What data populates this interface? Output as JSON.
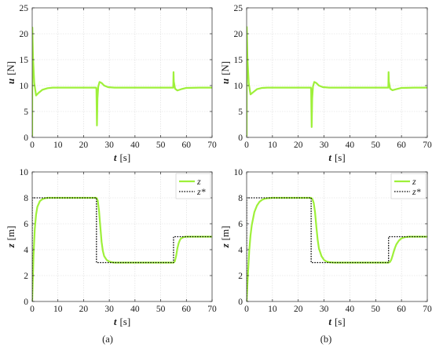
{
  "figure": {
    "captions": [
      "(a)",
      "(b)"
    ],
    "colors": {
      "series_main": "#9ef03a",
      "series_ref": "#000000",
      "grid": "#d9d9d9",
      "axes": "#262626"
    }
  },
  "chart_data": [
    {
      "id": "a-top",
      "type": "line",
      "xlabel_sym": "t",
      "xlabel_unit": "[s]",
      "ylabel_sym": "u",
      "ylabel_unit": "[N]",
      "xlim": [
        0,
        70
      ],
      "ylim": [
        0,
        25
      ],
      "xticks": [
        0,
        10,
        20,
        30,
        40,
        50,
        60,
        70
      ],
      "yticks": [
        0,
        5,
        10,
        15,
        20,
        25
      ],
      "grid": true,
      "series": [
        {
          "color": "#9ef03a",
          "x": [
            0,
            0.05,
            0.3,
            0.8,
            1.5,
            2.5,
            4,
            6,
            8,
            12,
            20,
            24.9,
            25.0,
            25.2,
            25.4,
            25.7,
            26.2,
            27,
            28,
            29.5,
            32,
            40,
            50,
            54.9,
            55.0,
            55.1,
            55.6,
            56.5,
            58,
            60,
            65,
            70
          ],
          "y": [
            0.2,
            21.2,
            15.5,
            10.5,
            8.1,
            8.6,
            9.2,
            9.5,
            9.6,
            9.6,
            9.6,
            9.6,
            9.2,
            2.3,
            7.5,
            9.8,
            10.7,
            10.5,
            10.0,
            9.7,
            9.6,
            9.6,
            9.6,
            9.6,
            12.6,
            10.8,
            9.4,
            9.05,
            9.3,
            9.55,
            9.6,
            9.6
          ]
        }
      ]
    },
    {
      "id": "b-top",
      "type": "line",
      "xlabel_sym": "t",
      "xlabel_unit": "[s]",
      "ylabel_sym": "u",
      "ylabel_unit": "[N]",
      "xlim": [
        0,
        70
      ],
      "ylim": [
        0,
        25
      ],
      "xticks": [
        0,
        10,
        20,
        30,
        40,
        50,
        60,
        70
      ],
      "yticks": [
        0,
        5,
        10,
        15,
        20,
        25
      ],
      "grid": true,
      "series": [
        {
          "color": "#9ef03a",
          "x": [
            0,
            0.05,
            0.3,
            0.8,
            1.5,
            2.5,
            4,
            6,
            8,
            12,
            20,
            24.9,
            25.0,
            25.2,
            25.4,
            25.7,
            26.2,
            27,
            28,
            29.5,
            32,
            40,
            50,
            54.9,
            55.0,
            55.1,
            55.6,
            56.5,
            58,
            60,
            65,
            70
          ],
          "y": [
            0.2,
            21.3,
            15.5,
            10.5,
            8.3,
            8.7,
            9.3,
            9.55,
            9.6,
            9.6,
            9.6,
            9.6,
            9.2,
            2.0,
            7.5,
            9.8,
            10.7,
            10.5,
            10.0,
            9.7,
            9.6,
            9.6,
            9.6,
            9.6,
            12.6,
            10.8,
            9.4,
            9.1,
            9.3,
            9.55,
            9.6,
            9.6
          ]
        }
      ]
    },
    {
      "id": "a-bottom",
      "type": "line",
      "xlabel_sym": "t",
      "xlabel_unit": "[s]",
      "ylabel_sym": "z",
      "ylabel_unit": "[m]",
      "xlim": [
        0,
        70
      ],
      "ylim": [
        0,
        10
      ],
      "xticks": [
        0,
        10,
        20,
        30,
        40,
        50,
        60,
        70
      ],
      "yticks": [
        0,
        2,
        4,
        6,
        8,
        10
      ],
      "grid": true,
      "legend": {
        "position": "top-right",
        "entries": [
          "z",
          "z*"
        ]
      },
      "series": [
        {
          "name": "z",
          "color": "#9ef03a",
          "dash": false,
          "x": [
            0,
            0.5,
            1,
            1.5,
            2,
            3,
            4,
            5,
            6,
            7,
            8,
            25,
            25.5,
            26,
            26.5,
            27,
            27.5,
            28,
            29,
            30,
            31,
            32,
            34,
            40,
            55,
            55.5,
            56,
            56.5,
            57,
            57.5,
            58,
            59,
            60,
            62,
            70
          ],
          "y": [
            0,
            3.5,
            5.6,
            6.7,
            7.3,
            7.75,
            7.9,
            7.97,
            8.0,
            8.0,
            8.0,
            8.0,
            7.8,
            7.0,
            5.8,
            4.6,
            3.9,
            3.5,
            3.2,
            3.08,
            3.03,
            3.0,
            3.0,
            3.0,
            3.0,
            3.1,
            3.5,
            4.1,
            4.5,
            4.75,
            4.88,
            4.97,
            5.0,
            5.0,
            5.0
          ]
        },
        {
          "name": "z*",
          "color": "#000000",
          "dash": true,
          "x": [
            0,
            0,
            25,
            25,
            55,
            55,
            70
          ],
          "y": [
            0,
            8,
            8,
            3,
            3,
            5,
            5
          ]
        }
      ]
    },
    {
      "id": "b-bottom",
      "type": "line",
      "xlabel_sym": "t",
      "xlabel_unit": "[s]",
      "ylabel_sym": "z",
      "ylabel_unit": "[m]",
      "xlim": [
        0,
        70
      ],
      "ylim": [
        0,
        10
      ],
      "xticks": [
        0,
        10,
        20,
        30,
        40,
        50,
        60,
        70
      ],
      "yticks": [
        0,
        2,
        4,
        6,
        8,
        10
      ],
      "grid": true,
      "legend": {
        "position": "top-right",
        "entries": [
          "z",
          "z*"
        ]
      },
      "series": [
        {
          "name": "z",
          "color": "#9ef03a",
          "dash": false,
          "x": [
            0,
            0.5,
            1,
            1.5,
            2,
            3,
            4,
            5,
            6,
            7,
            8,
            10,
            25,
            25.5,
            26,
            26.5,
            27,
            27.5,
            28,
            29,
            30,
            31,
            32,
            34,
            40,
            55,
            55.5,
            56,
            56.5,
            57,
            57.5,
            58,
            59,
            60,
            61,
            63,
            70
          ],
          "y": [
            0,
            2.1,
            3.9,
            5.1,
            5.9,
            6.9,
            7.4,
            7.7,
            7.85,
            7.93,
            7.97,
            8.0,
            8.0,
            7.9,
            7.6,
            6.9,
            5.8,
            4.8,
            4.1,
            3.5,
            3.2,
            3.08,
            3.03,
            3.0,
            3.0,
            3.0,
            3.04,
            3.2,
            3.5,
            3.85,
            4.15,
            4.4,
            4.7,
            4.87,
            4.95,
            5.0,
            5.0
          ]
        },
        {
          "name": "z*",
          "color": "#000000",
          "dash": true,
          "x": [
            0,
            0,
            25,
            25,
            55,
            55,
            70
          ],
          "y": [
            0,
            8,
            8,
            3,
            3,
            5,
            5
          ]
        }
      ]
    }
  ]
}
